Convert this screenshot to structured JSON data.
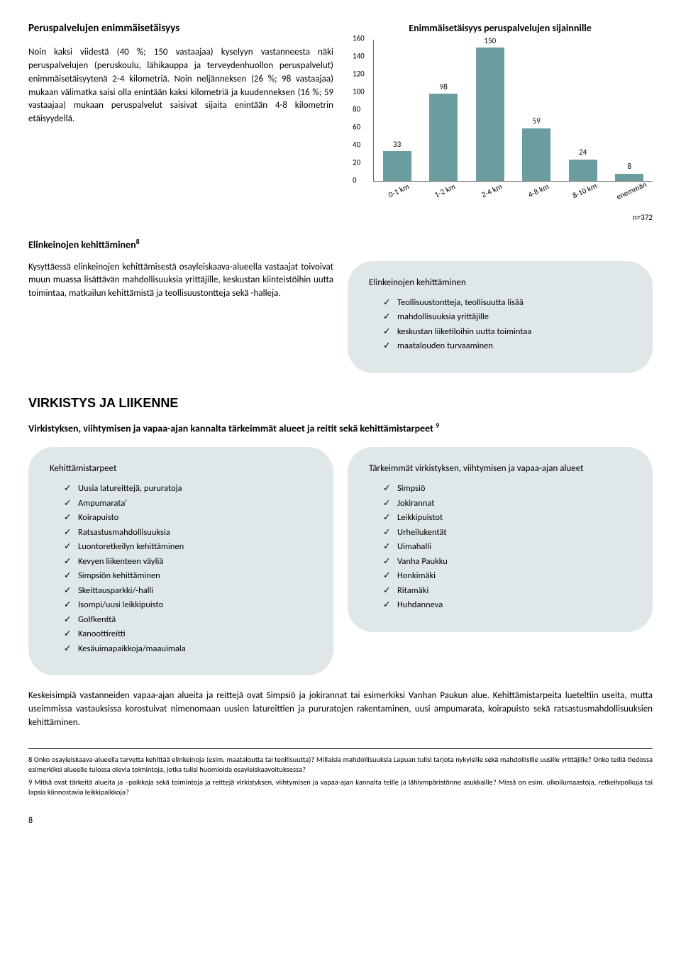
{
  "section1": {
    "title": "Peruspalvelujen enimmäisetäisyys",
    "body": "Noin kaksi viidestä (40 %; 150 vastaajaa) kyselyyn vastanneesta näki peruspalvelujen (peruskoulu, lähikauppa ja terveydenhuollon peruspalvelut) enimmäisetäisyytenä 2-4 kilometriä. Noin neljänneksen (26 %; 98 vastaajaa) mukaan välimatka saisi olla enintään kaksi kilometriä ja kuudenneksen (16 %; 59 vastaajaa) mukaan peruspalvelut saisivat sijaita enintään 4-8 kilometrin etäisyydellä."
  },
  "chart": {
    "title": "Enimmäisetäisyys peruspalvelujen sijainnille",
    "ylim": 160,
    "yticks": [
      0,
      20,
      40,
      60,
      80,
      100,
      120,
      140,
      160
    ],
    "categories": [
      "0-1 km",
      "1-2 km",
      "2-4 km",
      "4-8 km",
      "8-10 km",
      "enemmän"
    ],
    "values": [
      33,
      98,
      150,
      59,
      24,
      8
    ],
    "bar_color": "#6a9ca0",
    "n_label": "n=372"
  },
  "section2": {
    "title": "Elinkeinojen kehittäminen",
    "sup": "8",
    "body": "Kysyttäessä elinkeinojen kehittämisestä osayleiskaava-alueella vastaajat toivoivat muun muassa lisättävän mahdollisuuksia yrittäjille, keskustan kiinteistöihin uutta toimintaa, matkailun kehittämistä ja teollisuustontteja sekä -halleja."
  },
  "pill1": {
    "title": "Elinkeinojen kehittäminen",
    "items": [
      "Teollisuustontteja, teollisuutta lisää",
      "mahdollisuuksia yrittäjille",
      "keskustan liiketiloihin uutta toimintaa",
      "maatalouden turvaaminen"
    ]
  },
  "section3": {
    "heading": "VIRKISTYS JA LIIKENNE",
    "sub": "Virkistyksen, viihtymisen ja vapaa-ajan kannalta tärkeimmät alueet ja reitit sekä kehittämistarpeet",
    "sup": "9"
  },
  "pill2": {
    "title": "Kehittämistarpeet",
    "items": [
      "Uusia latureittejä, pururatoja",
      "Ampumarata'",
      "Koirapuisto",
      "Ratsastusmahdollisuuksia",
      "Luontoretkeilyn kehittäminen",
      "Kevyen liikenteen väyliä",
      "Simpsiön kehittäminen",
      "Skeittausparkki/-halli",
      "Isompi/uusi leikkipuisto",
      "Golfkenttä",
      "Kanoottireitti",
      "Kesäuimapaikkoja/maauimala"
    ]
  },
  "pill3": {
    "title": "Tärkeimmät virkistyksen, viihtymisen ja vapaa-ajan alueet",
    "items": [
      "Simpsiö",
      "Jokirannat",
      "Leikkipuistot",
      "Urheilukentät",
      "Uimahalli",
      "Vanha Paukku",
      "Honkimäki",
      "Ritamäki",
      "Huhdanneva"
    ]
  },
  "para2": "Keskeisimpiä vastanneiden vapaa-ajan alueita ja reittejä ovat Simpsiö ja jokirannat tai esimerkiksi Vanhan Paukun alue. Kehittämistarpeita lueteltiin useita, mutta useimmissa vastauksissa korostuivat nimenomaan uusien latureittien ja pururatojen rakentaminen, uusi ampumarata, koirapuisto sekä ratsastusmahdollisuuksien kehittäminen.",
  "footnotes": {
    "f8": "8 Onko osayleiskaava-alueella tarvetta kehittää elinkeinoja (esim. maataloutta tai teollisuutta)? Millaisia mahdollisuuksia Lapuan tulisi tarjota nykyisille sekä mahdollisille uusille yrittäjille? Onko teillä tiedossa esimerkiksi alueelle tulossa olevia toimintoja, jotka tulisi huomioida osayleiskaavoituksessa?",
    "f9": "9 Mitkä ovat tärkeitä alueita ja –paikkoja sekä toimintoja ja reittejä virkistyksen, viihtymisen ja vapaa-ajan kannalta teille ja lähiympäristönne asukkaille? Missä on esim. ulkoilumaastoja, retkeilypolkuja tai lapsia kiinnostavia leikkipaikkoja?"
  },
  "page_number": "8"
}
